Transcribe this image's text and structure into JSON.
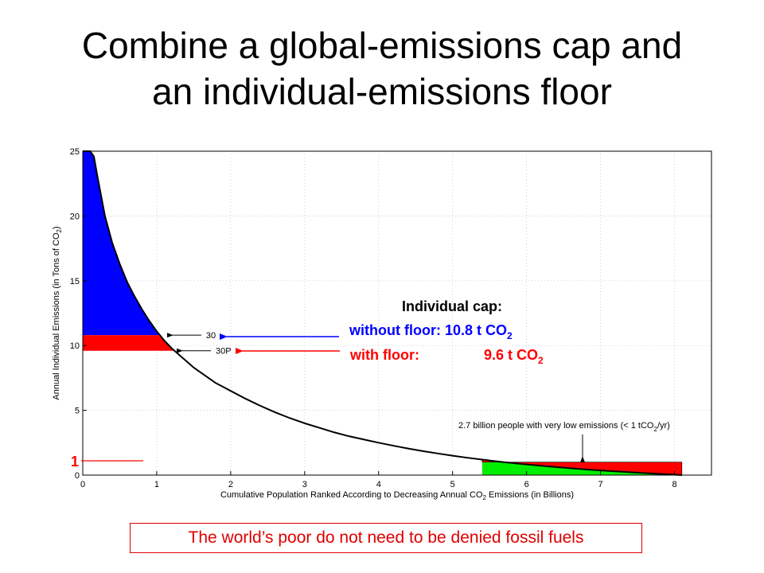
{
  "slide": {
    "title_line1": "Combine a global-emissions cap and",
    "title_line2": "an individual-emissions floor",
    "footer_note": "The world’s poor do not need to be denied fossil fuels"
  },
  "colors": {
    "blue": "#0000ff",
    "red": "#ff0000",
    "green": "#00ee00",
    "curve": "#000000",
    "grid": "#bbbbbb"
  },
  "chart_data": {
    "type": "area",
    "xlabel_main": "Cumulative Population Ranked According to Decreasing Annual CO",
    "xlabel_sub": "2",
    "xlabel_tail": " Emissions (in Billions)",
    "ylabel_main": "Annual Individual Emissions (in Tons of CO",
    "ylabel_sub": "2",
    "ylabel_tail": ")",
    "xlim": [
      0,
      8.5
    ],
    "ylim": [
      0,
      25
    ],
    "x_ticks": [
      "0",
      "1",
      "2",
      "3",
      "4",
      "5",
      "6",
      "7",
      "8"
    ],
    "y_ticks": [
      "0",
      "5",
      "10",
      "15",
      "20",
      "25"
    ],
    "grid": true,
    "curve": {
      "x": [
        0.0,
        0.05,
        0.1,
        0.15,
        0.2,
        0.3,
        0.4,
        0.5,
        0.6,
        0.7,
        0.8,
        0.9,
        1.0,
        1.1,
        1.2,
        1.3,
        1.4,
        1.5,
        1.6,
        1.7,
        1.8,
        1.9,
        2.0,
        2.2,
        2.4,
        2.6,
        2.8,
        3.0,
        3.2,
        3.4,
        3.6,
        3.8,
        4.0,
        4.2,
        4.4,
        4.6,
        4.8,
        5.0,
        5.2,
        5.4,
        5.6,
        5.8,
        6.0,
        6.2,
        6.4,
        6.6,
        6.8,
        7.0,
        7.2,
        7.4,
        7.6,
        7.8,
        8.0,
        8.1
      ],
      "y": [
        25.0,
        25.0,
        25.0,
        24.6,
        23.0,
        20.0,
        17.9,
        16.3,
        14.9,
        13.8,
        12.8,
        11.9,
        11.1,
        10.4,
        9.8,
        9.3,
        8.8,
        8.3,
        7.9,
        7.5,
        7.1,
        6.8,
        6.5,
        5.9,
        5.35,
        4.85,
        4.4,
        4.0,
        3.65,
        3.3,
        3.0,
        2.75,
        2.5,
        2.27,
        2.05,
        1.85,
        1.67,
        1.5,
        1.34,
        1.2,
        1.06,
        0.94,
        0.83,
        0.72,
        0.62,
        0.53,
        0.44,
        0.36,
        0.29,
        0.22,
        0.15,
        0.09,
        0.03,
        0.0
      ]
    },
    "cap_without_floor": 10.8,
    "cap_with_floor": 9.6,
    "floor": 1,
    "low_emitters_start": 5.4,
    "floor_end": 8.1,
    "curve_labels": [
      {
        "text": "30",
        "x": 1.15,
        "y": 10.8
      },
      {
        "text": "30P",
        "x": 1.28,
        "y": 9.6
      }
    ],
    "annotations": {
      "cap_title": "Individual cap:",
      "without_floor_label": "without floor: 10.8 t CO",
      "with_floor_label": "with floor:",
      "with_floor_value": "9.6 t CO",
      "sub2": "2",
      "low_note_main": "2.7 billion people with very low emissions (< 1 tCO",
      "low_note_sub": "2",
      "low_note_tail": "/yr)",
      "floor_value": "1"
    }
  }
}
